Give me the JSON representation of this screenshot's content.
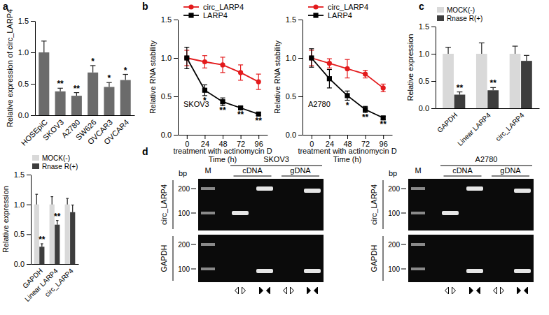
{
  "panel_labels": [
    "a",
    "b",
    "c",
    "d"
  ],
  "chart_data": [
    {
      "type": "bar",
      "y_label": "Relative expression of circ_LARP4",
      "categories": [
        "HOSEpiC",
        "SKOV3",
        "A2780",
        "SW626",
        "OVCAR3",
        "OVCAR4"
      ],
      "series": [
        {
          "color": "#6b6b6b",
          "values": [
            1.0,
            0.38,
            0.31,
            0.68,
            0.45,
            0.56
          ],
          "errors": [
            0.18,
            0.05,
            0.05,
            0.11,
            0.07,
            0.09
          ],
          "annotations": [
            null,
            "**",
            "**",
            "*",
            "*",
            "*"
          ]
        }
      ],
      "ylim": [
        0,
        1.5
      ],
      "yticks": [
        {
          "value": 0,
          "label": "0.0"
        },
        0.5,
        {
          "value": 1,
          "label": "1.0"
        },
        1.5
      ]
    },
    {
      "type": "bar",
      "y_label": "Relative expression",
      "legend": "top-left",
      "categories": [
        "GAPDH",
        "Linear LARP4",
        "circ_LARP4"
      ],
      "series": [
        {
          "name": "MOCK(-)",
          "color": "#d9d9d9",
          "values": [
            1.0,
            1.0,
            1.0
          ],
          "errors": [
            0.17,
            0.13,
            0.1
          ],
          "annotations": [
            null,
            null,
            null
          ]
        },
        {
          "name": "Rnase R(+)",
          "color": "#3d3d3d",
          "values": [
            0.29,
            0.66,
            0.87
          ],
          "errors": [
            0.05,
            0.07,
            0.12
          ],
          "annotations": [
            "**",
            "**",
            null
          ]
        }
      ],
      "ylim": [
        0,
        1.5
      ],
      "yticks": [
        {
          "value": 0,
          "label": "0.0"
        },
        0.5,
        {
          "value": 1,
          "label": "1.0"
        },
        1.5
      ]
    },
    {
      "type": "line",
      "subtitle": "SKOV3",
      "y_label": "Relative RNA stability",
      "x_label": [
        "treatment with actinomycin D",
        "Time (h)"
      ],
      "legend": "top-left",
      "x": [
        0,
        24,
        48,
        72,
        96
      ],
      "xlim": [
        -12,
        108
      ],
      "xticks": [
        0,
        24,
        48,
        72,
        96
      ],
      "series": [
        {
          "name": "circ_LARP4",
          "color": "#e31a1c",
          "marker": "circle",
          "values": [
            1.0,
            0.95,
            0.91,
            0.81,
            0.69
          ],
          "errors": [
            0.1,
            0.08,
            0.1,
            0.1,
            0.1
          ],
          "annotations": [
            null,
            null,
            null,
            null,
            null
          ]
        },
        {
          "name": "LARP4",
          "color": "#000000",
          "marker": "square",
          "values": [
            1.0,
            0.58,
            0.43,
            0.35,
            0.27
          ],
          "errors": [
            0.14,
            0.07,
            0.05,
            0.02,
            0.02
          ],
          "annotations": [
            null,
            "*",
            "**",
            "**",
            "**"
          ]
        }
      ],
      "ylim": [
        0,
        1.5
      ],
      "yticks": [
        {
          "value": 0,
          "label": "0.0"
        },
        0.5,
        {
          "value": 1,
          "label": "1.0"
        },
        1.5
      ]
    },
    {
      "type": "line",
      "subtitle": "A2780",
      "y_label": "Relative RNA stability",
      "x_label": [
        "treatment with actinomycin D",
        "Time (h)"
      ],
      "legend": "top-left",
      "x": [
        0,
        24,
        48,
        72,
        96
      ],
      "xlim": [
        -12,
        108
      ],
      "xticks": [
        0,
        24,
        48,
        72,
        96
      ],
      "series": [
        {
          "name": "circ_LARP4",
          "color": "#e31a1c",
          "marker": "circle",
          "values": [
            1.0,
            0.93,
            0.86,
            0.79,
            0.61
          ],
          "errors": [
            0.1,
            0.06,
            0.12,
            0.05,
            0.05
          ],
          "annotations": [
            null,
            null,
            null,
            null,
            null
          ]
        },
        {
          "name": "LARP4",
          "color": "#000000",
          "marker": "square",
          "values": [
            1.0,
            0.73,
            0.51,
            0.33,
            0.22
          ],
          "errors": [
            0.12,
            0.12,
            0.06,
            0.04,
            0.02
          ],
          "annotations": [
            null,
            null,
            "*",
            "**",
            "**"
          ]
        }
      ],
      "ylim": [
        0,
        1.5
      ],
      "yticks": [
        {
          "value": 0,
          "label": "0.0"
        },
        0.5,
        {
          "value": 1,
          "label": "1.0"
        },
        1.5
      ]
    },
    {
      "type": "bar",
      "y_label": "Relative expression",
      "legend": "top-left",
      "categories": [
        "GAPDH",
        "Linear LARP4",
        "circ_LARP4"
      ],
      "series": [
        {
          "name": "MOCK(-)",
          "color": "#d9d9d9",
          "values": [
            1.0,
            1.0,
            1.0
          ],
          "errors": [
            0.12,
            0.2,
            0.14
          ],
          "annotations": [
            null,
            null,
            null
          ]
        },
        {
          "name": "Rnase R(+)",
          "color": "#3d3d3d",
          "values": [
            0.25,
            0.33,
            0.87
          ],
          "errors": [
            0.05,
            0.05,
            0.1
          ],
          "annotations": [
            "**",
            "**",
            null
          ]
        }
      ],
      "ylim": [
        0,
        1.5
      ],
      "yticks": [
        {
          "value": 0,
          "label": "0.0"
        },
        0.5,
        {
          "value": 1,
          "label": "1.0"
        },
        1.5
      ]
    }
  ],
  "gels": [
    {
      "cell_line": "SKOV3",
      "marker": "M",
      "unit": "bp",
      "templates": [
        "cDNA",
        "gDNA"
      ],
      "targets": [
        "circ_LARP4",
        "GAPDH"
      ],
      "sizes": [
        200,
        100
      ]
    },
    {
      "cell_line": "A2780",
      "marker": "M",
      "unit": "bp",
      "templates": [
        "cDNA",
        "gDNA"
      ],
      "targets": [
        "circ_LARP4",
        "GAPDH"
      ],
      "sizes": [
        200,
        100
      ]
    }
  ]
}
